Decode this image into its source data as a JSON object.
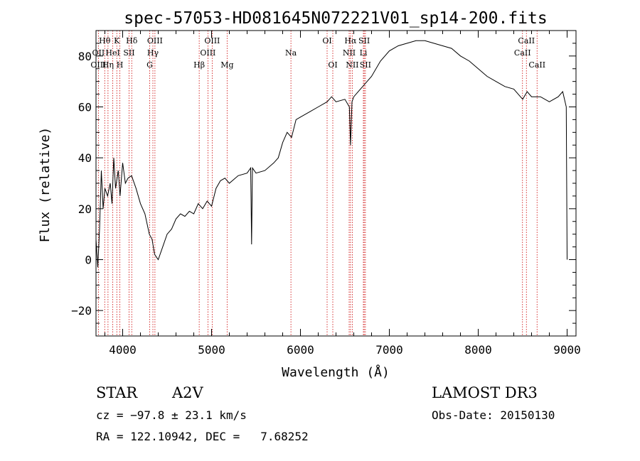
{
  "chart_data": {
    "type": "line",
    "title": "spec-57053-HD081645N072221V01_sp14-200.fits",
    "xlabel": "Wavelength (Å)",
    "ylabel": "Flux (relative)",
    "xlim": [
      3700,
      9100
    ],
    "ylim": [
      -30,
      90
    ],
    "x_ticks": [
      4000,
      5000,
      6000,
      7000,
      8000,
      9000
    ],
    "y_ticks": [
      -20,
      0,
      20,
      40,
      60,
      80
    ],
    "grid": false,
    "legend": "none",
    "series": [
      {
        "x": [
          3700,
          3720,
          3740,
          3760,
          3780,
          3800,
          3830,
          3860,
          3880,
          3900,
          3920,
          3950,
          3970,
          4000,
          4030,
          4060,
          4100,
          4150,
          4200,
          4250,
          4300,
          4330,
          4360,
          4400,
          4450,
          4500,
          4550,
          4600,
          4650,
          4700,
          4750,
          4800,
          4850,
          4900,
          4950,
          5000,
          5050,
          5100,
          5150,
          5200,
          5300,
          5400,
          5440,
          5450,
          5460,
          5500,
          5600,
          5700,
          5750,
          5800,
          5850,
          5900,
          5950,
          6000,
          6100,
          6200,
          6300,
          6350,
          6400,
          6500,
          6550,
          6563,
          6580,
          6600,
          6700,
          6800,
          6900,
          7000,
          7100,
          7200,
          7300,
          7400,
          7500,
          7600,
          7700,
          7800,
          7900,
          8000,
          8100,
          8200,
          8300,
          8400,
          8500,
          8550,
          8600,
          8700,
          8800,
          8900,
          8950,
          8990,
          9000
        ],
        "y": [
          8,
          -3,
          12,
          35,
          20,
          28,
          25,
          30,
          22,
          40,
          28,
          35,
          25,
          38,
          30,
          32,
          33,
          28,
          22,
          18,
          10,
          8,
          2,
          0,
          5,
          10,
          12,
          16,
          18,
          17,
          19,
          18,
          22,
          20,
          23,
          21,
          28,
          31,
          32,
          30,
          33,
          34,
          36,
          6,
          36,
          34,
          35,
          38,
          40,
          46,
          50,
          48,
          55,
          56,
          58,
          60,
          62,
          64,
          62,
          63,
          60,
          45,
          62,
          64,
          68,
          72,
          78,
          82,
          84,
          85,
          86,
          86,
          85,
          84,
          83,
          80,
          78,
          75,
          72,
          70,
          68,
          67,
          63,
          66,
          64,
          64,
          62,
          64,
          66,
          60,
          0
        ]
      }
    ],
    "line_labels": [
      {
        "name": "Hθ",
        "x": 3798,
        "row": 1
      },
      {
        "name": "K",
        "x": 3934,
        "row": 1
      },
      {
        "name": "Hδ",
        "x": 4102,
        "row": 1
      },
      {
        "name": "OIII",
        "x": 4363,
        "row": 1
      },
      {
        "name": "OIII",
        "x": 5007,
        "row": 1
      },
      {
        "name": "OI",
        "x": 6300,
        "row": 1
      },
      {
        "name": "Hα",
        "x": 6563,
        "row": 1
      },
      {
        "name": "SII",
        "x": 6717,
        "row": 1
      },
      {
        "name": "CaII",
        "x": 8542,
        "row": 1
      },
      {
        "name": "OII",
        "x": 3727,
        "row": 2
      },
      {
        "name": "HeI",
        "x": 3889,
        "row": 2
      },
      {
        "name": "SII",
        "x": 4072,
        "row": 2
      },
      {
        "name": "Hγ",
        "x": 4340,
        "row": 2
      },
      {
        "name": "OIII",
        "x": 4959,
        "row": 2
      },
      {
        "name": "Na",
        "x": 5893,
        "row": 2
      },
      {
        "name": "NII",
        "x": 6548,
        "row": 2
      },
      {
        "name": "Li",
        "x": 6708,
        "row": 2
      },
      {
        "name": "CaII",
        "x": 8498,
        "row": 2
      },
      {
        "name": "OIII",
        "x": 3727,
        "row": 3
      },
      {
        "name": "Hη",
        "x": 3835,
        "row": 3
      },
      {
        "name": "H",
        "x": 3968,
        "row": 3
      },
      {
        "name": "G",
        "x": 4304,
        "row": 3
      },
      {
        "name": "Hβ",
        "x": 4861,
        "row": 3
      },
      {
        "name": "Mg",
        "x": 5175,
        "row": 3
      },
      {
        "name": "OI",
        "x": 6364,
        "row": 3
      },
      {
        "name": "NII",
        "x": 6583,
        "row": 3
      },
      {
        "name": "SII",
        "x": 6731,
        "row": 3
      },
      {
        "name": "CaII",
        "x": 8662,
        "row": 3
      }
    ],
    "colors": {
      "line": "#000000",
      "marker": "#cc0000"
    }
  },
  "info": {
    "object_type": "STAR",
    "subclass": "A2V",
    "survey": "LAMOST DR3",
    "cz": "cz = −97.8 ± 23.1 km/s",
    "obs_date": "Obs-Date: 20150130",
    "coords": "RA = 122.10942, DEC =   7.68252"
  }
}
